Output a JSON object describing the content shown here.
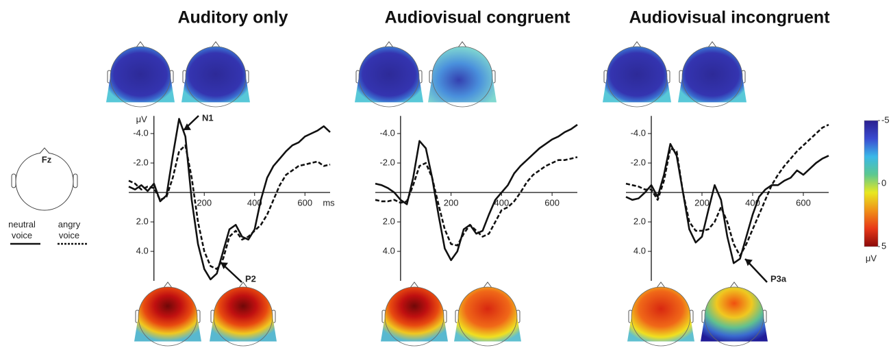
{
  "chart_data": [
    {
      "type": "line",
      "title": "Auditory only",
      "y_label": "μV",
      "x_label": "ms",
      "x": [
        -100,
        -75,
        -50,
        -25,
        0,
        25,
        50,
        75,
        100,
        125,
        150,
        175,
        200,
        225,
        250,
        275,
        300,
        325,
        350,
        375,
        400,
        425,
        450,
        475,
        500,
        525,
        550,
        575,
        600,
        625,
        650,
        675,
        700
      ],
      "series": [
        {
          "name": "neutral voice",
          "color": "#111111",
          "dash": "solid",
          "values": [
            -0.4,
            -0.2,
            -0.5,
            -0.1,
            -0.6,
            0.6,
            0.2,
            -2.5,
            -5.0,
            -3.8,
            0.5,
            3.5,
            5.2,
            5.9,
            5.5,
            4.0,
            2.5,
            2.2,
            3.0,
            3.2,
            2.5,
            0.5,
            -1.0,
            -1.8,
            -2.3,
            -2.8,
            -3.2,
            -3.4,
            -3.8,
            -4.0,
            -4.2,
            -4.5,
            -4.1
          ]
        },
        {
          "name": "angry voice",
          "color": "#111111",
          "dash": "dashed",
          "values": [
            -0.8,
            -0.6,
            -0.2,
            -0.4,
            -0.3,
            0.5,
            0.3,
            -1.0,
            -2.8,
            -3.2,
            -1.0,
            2.0,
            4.0,
            5.0,
            5.2,
            4.5,
            3.0,
            2.6,
            3.2,
            3.0,
            2.6,
            2.2,
            1.5,
            0.5,
            -0.5,
            -1.2,
            -1.5,
            -1.8,
            -1.9,
            -2.0,
            -2.1,
            -1.8,
            -1.9
          ]
        }
      ],
      "xlim": [
        -100,
        700
      ],
      "xticks": [
        200,
        400,
        600
      ],
      "ylim": [
        -5.2,
        6
      ],
      "y_inverted": true,
      "yticks": [
        {
          "value": -4,
          "label": "-4.0"
        },
        {
          "value": -2,
          "label": "-2.0"
        },
        {
          "value": 2,
          "label": "2.0"
        },
        {
          "value": 4,
          "label": "4.0"
        }
      ],
      "annotations": [
        {
          "text": "N1"
        },
        {
          "text": "P2"
        }
      ]
    },
    {
      "type": "line",
      "title": "Audiovisual congruent",
      "x": [
        -100,
        -75,
        -50,
        -25,
        0,
        25,
        50,
        75,
        100,
        125,
        150,
        175,
        200,
        225,
        250,
        275,
        300,
        325,
        350,
        375,
        400,
        425,
        450,
        475,
        500,
        525,
        550,
        575,
        600,
        625,
        650,
        675,
        700
      ],
      "series": [
        {
          "name": "neutral voice",
          "color": "#111111",
          "dash": "solid",
          "values": [
            -0.6,
            -0.5,
            -0.3,
            0,
            0.5,
            0.8,
            -1.0,
            -3.5,
            -3.0,
            -1.0,
            1.5,
            3.8,
            4.6,
            4.0,
            2.5,
            2.2,
            2.8,
            2.6,
            1.5,
            0.5,
            0,
            -0.5,
            -1.3,
            -1.8,
            -2.2,
            -2.6,
            -3.0,
            -3.3,
            -3.6,
            -3.8,
            -4.1,
            -4.3,
            -4.6
          ]
        },
        {
          "name": "angry voice",
          "color": "#111111",
          "dash": "dashed",
          "values": [
            0.5,
            0.6,
            0.6,
            0.5,
            0.7,
            0.6,
            -0.5,
            -1.8,
            -2.0,
            -1.0,
            0.8,
            2.5,
            3.5,
            3.6,
            2.8,
            2.2,
            2.6,
            3.0,
            2.8,
            2.0,
            1.2,
            1.0,
            0.6,
            0,
            -0.7,
            -1.2,
            -1.5,
            -1.8,
            -2.0,
            -2.2,
            -2.2,
            -2.3,
            -2.4
          ]
        }
      ],
      "xlim": [
        -100,
        700
      ],
      "xticks": [
        200,
        400,
        600
      ],
      "ylim": [
        -5.2,
        6
      ],
      "y_inverted": true,
      "yticks": [
        {
          "value": -4,
          "label": "-4.0"
        },
        {
          "value": -2,
          "label": "-2.0"
        },
        {
          "value": 2,
          "label": "2.0"
        },
        {
          "value": 4,
          "label": "4.0"
        }
      ]
    },
    {
      "type": "line",
      "title": "Audiovisual incongruent",
      "x": [
        -100,
        -75,
        -50,
        -25,
        0,
        25,
        50,
        75,
        100,
        125,
        150,
        175,
        200,
        225,
        250,
        275,
        300,
        325,
        350,
        375,
        400,
        425,
        450,
        475,
        500,
        525,
        550,
        575,
        600,
        625,
        650,
        675,
        700
      ],
      "series": [
        {
          "name": "neutral voice",
          "color": "#111111",
          "dash": "solid",
          "values": [
            0.3,
            0.5,
            0.4,
            0,
            -0.5,
            0.3,
            -1.2,
            -3.3,
            -2.5,
            0,
            2.5,
            3.4,
            3.0,
            1.2,
            -0.5,
            0.5,
            3.0,
            4.8,
            4.5,
            3.0,
            1.5,
            0.3,
            -0.2,
            -0.5,
            -0.5,
            -0.8,
            -1.0,
            -1.5,
            -1.2,
            -1.6,
            -2.0,
            -2.3,
            -2.5
          ]
        },
        {
          "name": "angry voice",
          "color": "#111111",
          "dash": "dashed",
          "values": [
            -0.6,
            -0.5,
            -0.4,
            -0.2,
            -0.2,
            0.5,
            -0.8,
            -3.0,
            -2.8,
            0,
            2.0,
            2.6,
            2.6,
            2.5,
            2.0,
            1.0,
            2.0,
            3.5,
            4.3,
            3.5,
            2.5,
            1.5,
            0.5,
            -0.5,
            -1.2,
            -1.8,
            -2.3,
            -2.8,
            -3.2,
            -3.6,
            -4.0,
            -4.4,
            -4.6
          ]
        }
      ],
      "xlim": [
        -100,
        700
      ],
      "xticks": [
        200,
        400,
        600
      ],
      "ylim": [
        -5.2,
        6
      ],
      "y_inverted": true,
      "yticks": [
        {
          "value": -4,
          "label": "-4.0"
        },
        {
          "value": -2,
          "label": "-2.0"
        },
        {
          "value": 2,
          "label": "2.0"
        },
        {
          "value": 4,
          "label": "4.0"
        }
      ],
      "annotations": [
        {
          "text": "P3a"
        }
      ]
    }
  ],
  "electrode": "Fz",
  "colorbar": {
    "ticks": [
      -5,
      0,
      5
    ],
    "label": "μV",
    "lim": [
      -5,
      5
    ],
    "colors": [
      "#2a1f8f",
      "#3a4ad0",
      "#3ab8e8",
      "#5cc890",
      "#e8e820",
      "#f09018",
      "#e83818",
      "#8a0a0a"
    ]
  }
}
